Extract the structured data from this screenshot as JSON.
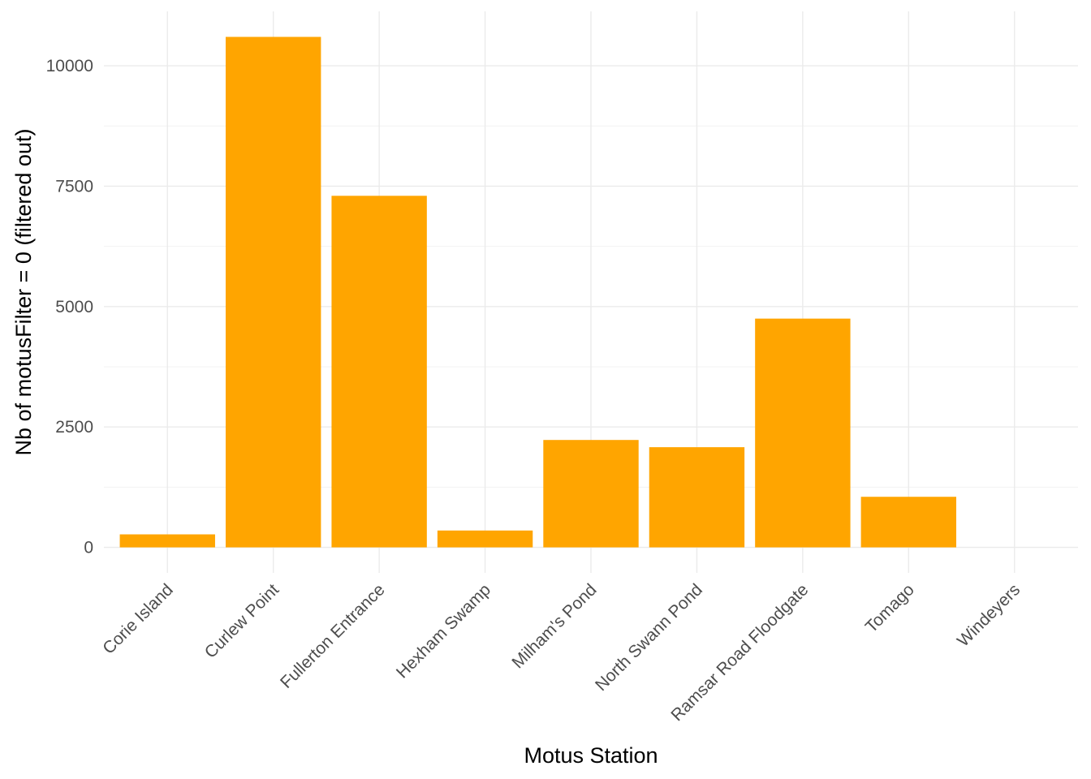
{
  "chart_data": {
    "type": "bar",
    "title": "",
    "xlabel": "Motus Station",
    "ylabel": "Nb of motusFilter = 0 (filtered out)",
    "categories": [
      "Corie Island",
      "Curlew Point",
      "Fullerton Entrance",
      "Hexham Swamp",
      "Milham's Pond",
      "North Swann Pond",
      "Ramsar Road Floodgate",
      "Tomago",
      "Windeyers"
    ],
    "values": [
      270,
      10600,
      7300,
      350,
      2230,
      2080,
      4750,
      1050,
      0
    ],
    "y_ticks": [
      0,
      2500,
      5000,
      7500,
      10000
    ],
    "y_tick_labels": [
      "0",
      "2500",
      "5000",
      "7500",
      "10000"
    ],
    "ylim": [
      -530,
      11130
    ],
    "grid": true,
    "legend": "none",
    "bar_color": "#FFA500"
  }
}
